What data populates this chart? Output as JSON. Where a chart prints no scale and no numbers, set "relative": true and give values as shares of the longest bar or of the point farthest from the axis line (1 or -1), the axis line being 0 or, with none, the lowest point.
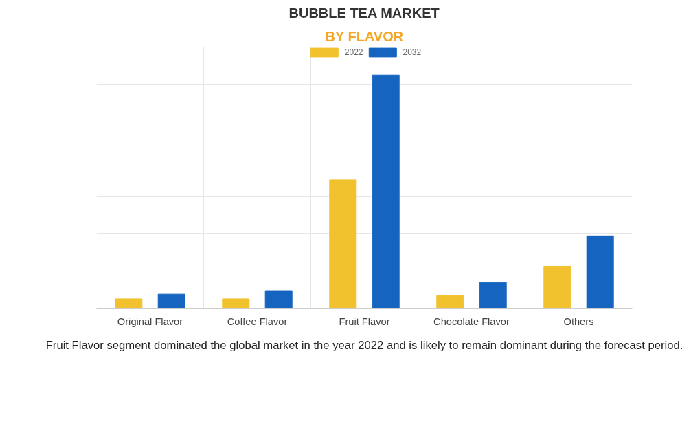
{
  "chart_data": {
    "type": "bar",
    "title": "BUBBLE TEA MARKET",
    "subtitle": "BY FLAVOR",
    "categories": [
      "Original Flavor",
      "Coffee Flavor",
      "Fruit Flavor",
      "Chocolate Flavor",
      "Others"
    ],
    "relative": true,
    "grid": true,
    "legend": "top",
    "series": [
      {
        "name": "2022",
        "color": "#f2c12e",
        "values": [
          0.04,
          0.04,
          0.55,
          0.056,
          0.18
        ]
      },
      {
        "name": "2032",
        "color": "#1565c0",
        "values": [
          0.06,
          0.075,
          1,
          0.11,
          0.31
        ]
      }
    ],
    "annotations": [
      "Fruit Flavor segment dominated the global market in the year 2022 and is likely to remain dominant during the forecast period."
    ]
  }
}
